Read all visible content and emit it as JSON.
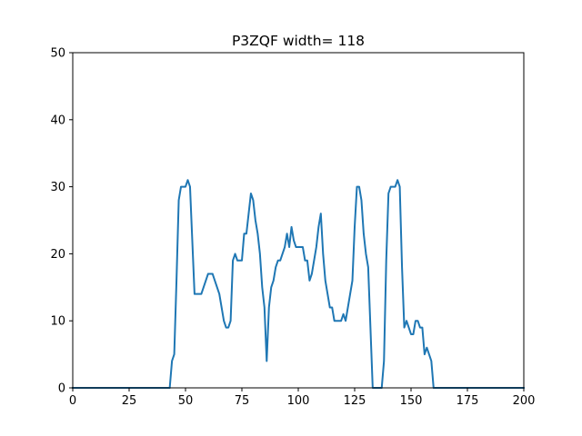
{
  "chart_data": {
    "type": "line",
    "title": "P3ZQF width= 118",
    "xlabel": "",
    "ylabel": "",
    "xlim": [
      0,
      200
    ],
    "ylim": [
      0,
      50
    ],
    "xticks": [
      0,
      25,
      50,
      75,
      100,
      125,
      150,
      175,
      200
    ],
    "yticks": [
      0,
      10,
      20,
      30,
      40,
      50
    ],
    "grid": false,
    "series": [
      {
        "color": "#1f77b4",
        "x": [
          0,
          10,
          20,
          30,
          40,
          43,
          44,
          45,
          46,
          47,
          48,
          49,
          50,
          51,
          52,
          53,
          54,
          55,
          56,
          57,
          58,
          59,
          60,
          61,
          62,
          63,
          64,
          65,
          66,
          67,
          68,
          69,
          70,
          71,
          72,
          73,
          74,
          75,
          76,
          77,
          78,
          79,
          80,
          81,
          82,
          83,
          84,
          85,
          86,
          87,
          88,
          89,
          90,
          91,
          92,
          93,
          94,
          95,
          96,
          97,
          98,
          99,
          100,
          101,
          102,
          103,
          104,
          105,
          106,
          107,
          108,
          109,
          110,
          111,
          112,
          113,
          114,
          115,
          116,
          117,
          118,
          119,
          120,
          121,
          122,
          123,
          124,
          125,
          126,
          127,
          128,
          129,
          130,
          131,
          132,
          133,
          134,
          135,
          136,
          137,
          138,
          139,
          140,
          141,
          142,
          143,
          144,
          145,
          146,
          147,
          148,
          149,
          150,
          151,
          152,
          153,
          154,
          155,
          156,
          157,
          158,
          159,
          160,
          161,
          162,
          170,
          180,
          190,
          200
        ],
        "y": [
          0,
          0,
          0,
          0,
          0,
          0,
          4,
          5,
          16,
          28,
          30,
          30,
          30,
          31,
          30,
          22,
          14,
          14,
          14,
          14,
          15,
          16,
          17,
          17,
          17,
          16,
          15,
          14,
          12,
          10,
          9,
          9,
          10,
          19,
          20,
          19,
          19,
          19,
          23,
          23,
          26,
          29,
          28,
          25,
          23,
          20,
          15,
          12,
          4,
          12,
          15,
          16,
          18,
          19,
          19,
          20,
          21,
          23,
          21,
          24,
          22,
          21,
          21,
          21,
          21,
          19,
          19,
          16,
          17,
          19,
          21,
          24,
          26,
          20,
          16,
          14,
          12,
          12,
          10,
          10,
          10,
          10,
          11,
          10,
          12,
          14,
          16,
          24,
          30,
          30,
          28,
          23,
          20,
          18,
          9,
          0,
          0,
          0,
          0,
          0,
          4,
          19,
          29,
          30,
          30,
          30,
          31,
          30,
          18,
          9,
          10,
          9,
          8,
          8,
          10,
          10,
          9,
          9,
          5,
          6,
          5,
          4,
          0,
          0,
          0,
          0,
          0,
          0,
          0
        ]
      }
    ]
  }
}
